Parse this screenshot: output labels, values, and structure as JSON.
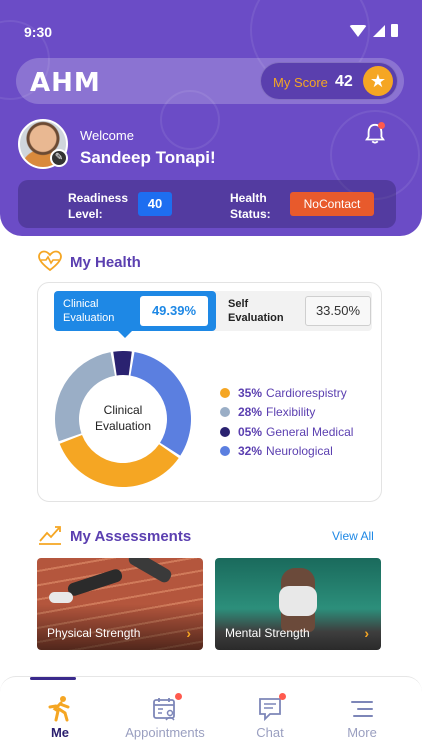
{
  "status_bar": {
    "time": "9:30"
  },
  "header": {
    "logo_text": "AHM",
    "score_label": "My Score",
    "score_value": "42",
    "welcome": "Welcome",
    "user_name": "Sandeep Tonapi!",
    "readiness_label": "Readiness Level:",
    "readiness_value": "40",
    "health_status_label": "Health Status:",
    "health_status_value": "NoContact"
  },
  "my_health": {
    "title": "My Health",
    "tabs": [
      {
        "label": "Clinical Evaluation",
        "value": "49.39%",
        "selected": true
      },
      {
        "label": "Self Evaluation",
        "value": "33.50%",
        "selected": false
      }
    ],
    "donut_center": "Clinical Evaluation"
  },
  "chart_data": {
    "type": "pie",
    "categories": [
      "Cardiorespistry",
      "Flexibility",
      "General Medical",
      "Neurological"
    ],
    "values": [
      35,
      28,
      5,
      32
    ],
    "value_labels": [
      "35%",
      "28%",
      "05%",
      "32%"
    ],
    "colors": [
      "#f5a623",
      "#9aaec6",
      "#2a2270",
      "#5b7fe0"
    ],
    "title": "Clinical Evaluation",
    "legend": "right"
  },
  "my_assessments": {
    "title": "My Assessments",
    "view_all": "View All",
    "cards": [
      {
        "label": "Physical Strength"
      },
      {
        "label": "Mental Strength"
      }
    ]
  },
  "bottom_nav": {
    "items": [
      {
        "label": "Me",
        "icon": "runner-icon",
        "active": true
      },
      {
        "label": "Appointments",
        "icon": "calendar-user-icon",
        "active": false
      },
      {
        "label": "Chat",
        "icon": "chat-icon",
        "active": false
      },
      {
        "label": "More",
        "icon": "menu-icon",
        "active": false
      }
    ]
  },
  "colors": {
    "brand_purple": "#6b4cc6",
    "accent_orange": "#f5a623",
    "accent_blue": "#1e88e5",
    "status_red": "#e85a2c"
  }
}
